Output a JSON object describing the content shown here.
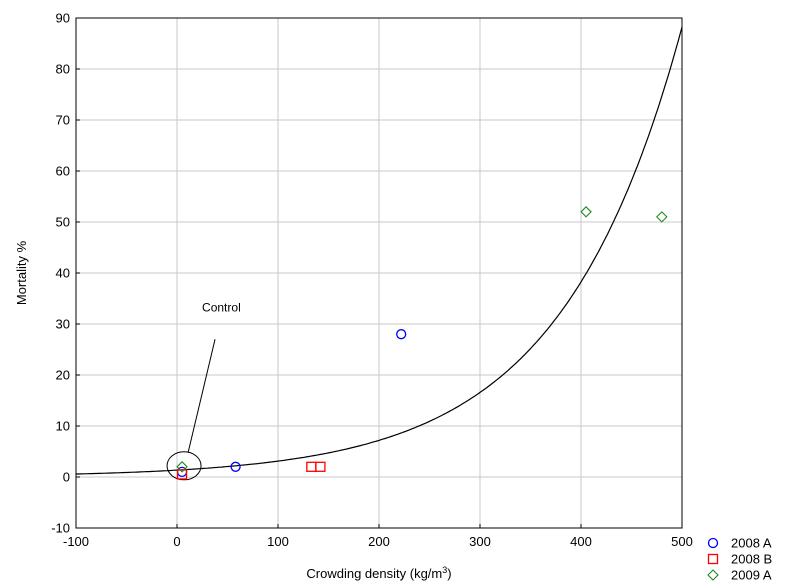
{
  "chart_data": {
    "type": "scatter",
    "title": "",
    "xlabel": "Crowding density (kg/m",
    "xlabel_superscript": "3",
    "xlabel_suffix": ")",
    "ylabel": "Mortality %",
    "xlim": [
      -100,
      500
    ],
    "ylim": [
      -10,
      90
    ],
    "x_ticks": [
      -100,
      0,
      100,
      200,
      300,
      400,
      500
    ],
    "y_ticks": [
      -10,
      0,
      10,
      20,
      30,
      40,
      50,
      60,
      70,
      80,
      90
    ],
    "grid": true,
    "legend_position": "bottom-right outside",
    "series": [
      {
        "name": "2008 A",
        "marker": "circle",
        "color": "#0000ff",
        "points": [
          [
            5,
            1
          ],
          [
            58,
            2
          ],
          [
            222,
            28
          ]
        ]
      },
      {
        "name": "2008 B",
        "marker": "square",
        "color": "#ff0000",
        "points": [
          [
            5,
            0.5
          ],
          [
            133,
            2
          ],
          [
            142,
            2
          ]
        ]
      },
      {
        "name": "2009 A",
        "marker": "diamond",
        "color": "#228b22",
        "points": [
          [
            5,
            2
          ],
          [
            405,
            52
          ],
          [
            480,
            51
          ]
        ]
      }
    ],
    "fit_curve": {
      "type": "exponential",
      "formula": "y = 1.35 * exp(0.00836 * x)",
      "a": 1.35,
      "b": 0.00836
    },
    "annotations": [
      {
        "text": "Control",
        "target": [
          5,
          2
        ]
      }
    ]
  }
}
